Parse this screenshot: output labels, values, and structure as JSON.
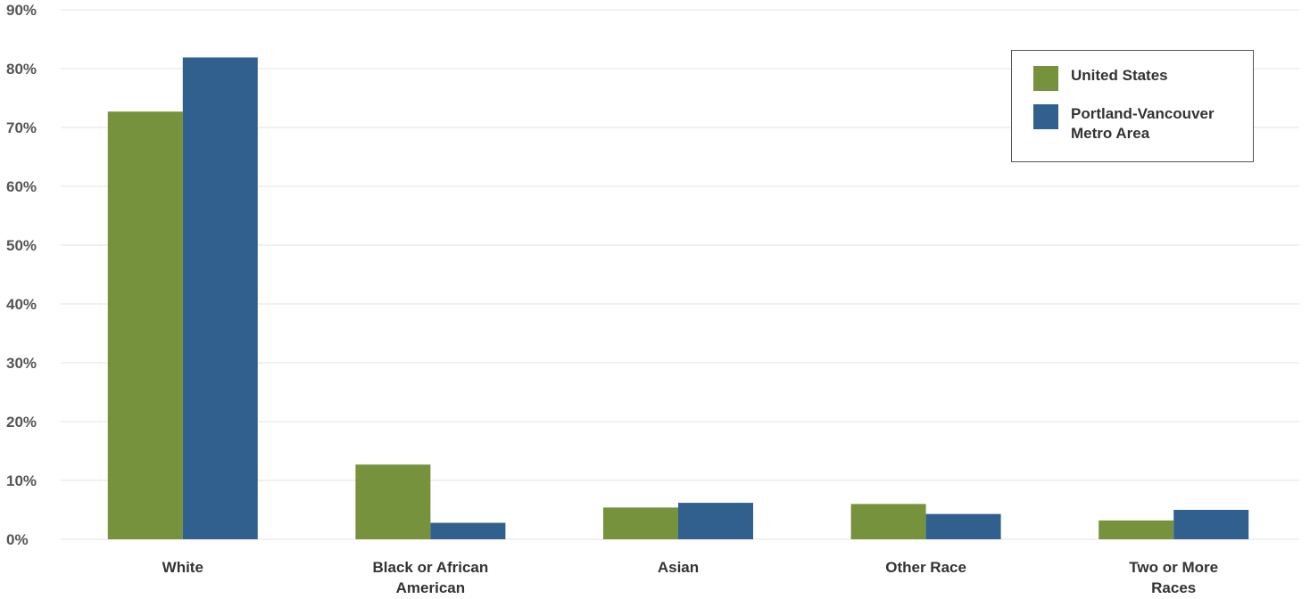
{
  "chart_data": {
    "type": "bar",
    "title": "",
    "xlabel": "",
    "ylabel": "",
    "ylim": [
      0,
      90
    ],
    "y_ticks": [
      "0%",
      "10%",
      "20%",
      "30%",
      "40%",
      "50%",
      "60%",
      "70%",
      "80%",
      "90%"
    ],
    "y_tick_values": [
      0,
      10,
      20,
      30,
      40,
      50,
      60,
      70,
      80,
      90
    ],
    "categories": [
      [
        "White"
      ],
      [
        "Black or African",
        "American"
      ],
      [
        "Asian"
      ],
      [
        "Other Race"
      ],
      [
        "Two or More",
        "Races"
      ]
    ],
    "series": [
      {
        "name": "United States",
        "color": "#76923c",
        "values": [
          72.7,
          12.7,
          5.4,
          6.0,
          3.2
        ]
      },
      {
        "name": "Portland-Vancouver Metro Area",
        "color": "#31608f",
        "values": [
          81.9,
          2.8,
          6.2,
          4.3,
          5.0
        ]
      }
    ],
    "grid": true,
    "legend_position": "top-right",
    "legend": {
      "items": [
        {
          "lines": [
            "United States"
          ],
          "color": "#76923c"
        },
        {
          "lines": [
            "Portland-Vancouver",
            "Metro Area"
          ],
          "color": "#31608f"
        }
      ]
    }
  }
}
